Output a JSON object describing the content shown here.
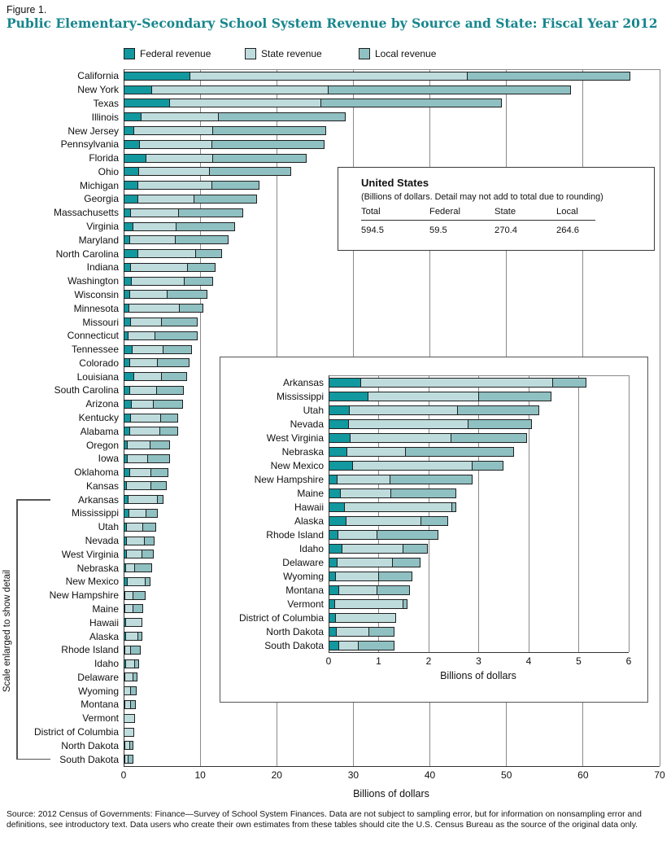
{
  "figure": {
    "label": "Figure 1.",
    "title": "Public Elementary-Secondary School System Revenue by Source and State: Fiscal Year 2012"
  },
  "legend": [
    {
      "label": "Federal revenue",
      "color": "#12989f"
    },
    {
      "label": "State revenue",
      "color": "#bfdcdd"
    },
    {
      "label": "Local revenue",
      "color": "#8fc0c2"
    }
  ],
  "us_box": {
    "title": "United States",
    "subtitle": "(Billions of dollars. Detail may not add to total due to rounding)",
    "columns": [
      "Total",
      "Federal",
      "State",
      "Local"
    ],
    "values": [
      "594.5",
      "59.5",
      "270.4",
      "264.6"
    ]
  },
  "scale_note": "Scale enlarged to show detail",
  "source": "Source: 2012 Census of Governments: Finance—Survey of School System Finances. Data are not subject to sampling error, but for information on nonsampling error and definitions, see introductory text. Data users who create their own estimates from these tables should cite the U.S. Census Bureau as the source of the original data only.",
  "chart_data": [
    {
      "id": "main",
      "type": "bar",
      "orientation": "horizontal",
      "stacked": true,
      "xlabel": "Billions of dollars",
      "xlim": [
        0,
        70
      ],
      "xticks": [
        0,
        10,
        20,
        30,
        40,
        50,
        60,
        70
      ],
      "grid": true,
      "legend_position": "top",
      "series_names": [
        "Federal revenue",
        "State revenue",
        "Local revenue"
      ],
      "units": "billions of dollars",
      "states": [
        {
          "name": "California",
          "federal": 8.7,
          "state": 36.2,
          "local": 21.3
        },
        {
          "name": "New York",
          "federal": 3.7,
          "state": 23.1,
          "local": 31.6
        },
        {
          "name": "Texas",
          "federal": 6.1,
          "state": 19.7,
          "local": 23.6
        },
        {
          "name": "Illinois",
          "federal": 2.3,
          "state": 10.1,
          "local": 16.6
        },
        {
          "name": "New Jersey",
          "federal": 1.4,
          "state": 10.3,
          "local": 14.8
        },
        {
          "name": "Pennsylvania",
          "federal": 2.1,
          "state": 9.5,
          "local": 14.6
        },
        {
          "name": "Florida",
          "federal": 3.0,
          "state": 8.7,
          "local": 12.2
        },
        {
          "name": "Ohio",
          "federal": 2.0,
          "state": 9.3,
          "local": 10.6
        },
        {
          "name": "Michigan",
          "federal": 1.9,
          "state": 9.7,
          "local": 6.1
        },
        {
          "name": "Georgia",
          "federal": 1.9,
          "state": 7.3,
          "local": 8.2
        },
        {
          "name": "Massachusetts",
          "federal": 1.0,
          "state": 6.2,
          "local": 8.4
        },
        {
          "name": "Virginia",
          "federal": 1.3,
          "state": 5.6,
          "local": 7.7
        },
        {
          "name": "Maryland",
          "federal": 0.9,
          "state": 5.9,
          "local": 6.9
        },
        {
          "name": "North Carolina",
          "federal": 1.9,
          "state": 7.6,
          "local": 3.3
        },
        {
          "name": "Indiana",
          "federal": 1.0,
          "state": 7.4,
          "local": 3.6
        },
        {
          "name": "Washington",
          "federal": 1.1,
          "state": 6.9,
          "local": 3.7
        },
        {
          "name": "Wisconsin",
          "federal": 0.8,
          "state": 4.9,
          "local": 5.2
        },
        {
          "name": "Minnesota",
          "federal": 0.7,
          "state": 6.6,
          "local": 3.1
        },
        {
          "name": "Missouri",
          "federal": 1.0,
          "state": 4.0,
          "local": 4.7
        },
        {
          "name": "Connecticut",
          "federal": 0.6,
          "state": 3.5,
          "local": 5.6
        },
        {
          "name": "Tennessee",
          "federal": 1.2,
          "state": 4.0,
          "local": 3.7
        },
        {
          "name": "Colorado",
          "federal": 0.8,
          "state": 3.7,
          "local": 4.1
        },
        {
          "name": "Louisiana",
          "federal": 1.4,
          "state": 3.6,
          "local": 3.3
        },
        {
          "name": "South Carolina",
          "federal": 0.9,
          "state": 3.5,
          "local": 3.5
        },
        {
          "name": "Arizona",
          "federal": 1.1,
          "state": 2.8,
          "local": 3.9
        },
        {
          "name": "Kentucky",
          "federal": 1.0,
          "state": 3.9,
          "local": 2.2
        },
        {
          "name": "Alabama",
          "federal": 0.9,
          "state": 3.9,
          "local": 2.3
        },
        {
          "name": "Oregon",
          "federal": 0.5,
          "state": 3.0,
          "local": 2.6
        },
        {
          "name": "Iowa",
          "federal": 0.5,
          "state": 2.7,
          "local": 2.9
        },
        {
          "name": "Oklahoma",
          "federal": 0.8,
          "state": 2.8,
          "local": 2.2
        },
        {
          "name": "Kansas",
          "federal": 0.4,
          "state": 3.2,
          "local": 2.0
        },
        {
          "name": "Arkansas",
          "federal": 0.65,
          "state": 3.84,
          "local": 0.67
        },
        {
          "name": "Mississippi",
          "federal": 0.79,
          "state": 2.21,
          "local": 1.46
        },
        {
          "name": "Utah",
          "federal": 0.43,
          "state": 2.15,
          "local": 1.63
        },
        {
          "name": "Nevada",
          "federal": 0.41,
          "state": 2.39,
          "local": 1.27
        },
        {
          "name": "West Virginia",
          "federal": 0.44,
          "state": 2.01,
          "local": 1.51
        },
        {
          "name": "Nebraska",
          "federal": 0.37,
          "state": 1.17,
          "local": 2.16
        },
        {
          "name": "New Mexico",
          "federal": 0.49,
          "state": 2.38,
          "local": 0.62
        },
        {
          "name": "New Hampshire",
          "federal": 0.18,
          "state": 1.05,
          "local": 1.64
        },
        {
          "name": "Maine",
          "federal": 0.25,
          "state": 1.0,
          "local": 1.31
        },
        {
          "name": "Hawaii",
          "federal": 0.33,
          "state": 2.14,
          "local": 0.08
        },
        {
          "name": "Alaska",
          "federal": 0.36,
          "state": 1.5,
          "local": 0.53
        },
        {
          "name": "Rhode Island",
          "federal": 0.2,
          "state": 0.78,
          "local": 1.22
        },
        {
          "name": "Idaho",
          "federal": 0.27,
          "state": 1.23,
          "local": 0.49
        },
        {
          "name": "Delaware",
          "federal": 0.18,
          "state": 1.1,
          "local": 0.55
        },
        {
          "name": "Wyoming",
          "federal": 0.15,
          "state": 0.85,
          "local": 0.67
        },
        {
          "name": "Montana",
          "federal": 0.21,
          "state": 0.77,
          "local": 0.64
        },
        {
          "name": "Vermont",
          "federal": 0.13,
          "state": 1.37,
          "local": 0.08
        },
        {
          "name": "District of Columbia",
          "federal": 0.15,
          "state": 1.2,
          "local": 0.0
        },
        {
          "name": "North Dakota",
          "federal": 0.17,
          "state": 0.65,
          "local": 0.5
        },
        {
          "name": "South Dakota",
          "federal": 0.21,
          "state": 0.39,
          "local": 0.71
        }
      ]
    },
    {
      "id": "inset",
      "type": "bar",
      "orientation": "horizontal",
      "stacked": true,
      "xlabel": "Billions of dollars",
      "xlim": [
        0,
        6
      ],
      "xticks": [
        0,
        1,
        2,
        3,
        4,
        5,
        6
      ],
      "grid": true,
      "note": "Scale enlarged to show detail",
      "series_names": [
        "Federal revenue",
        "State revenue",
        "Local revenue"
      ],
      "units": "billions of dollars",
      "states": [
        {
          "name": "Arkansas",
          "federal": 0.65,
          "state": 3.84,
          "local": 0.67
        },
        {
          "name": "Mississippi",
          "federal": 0.79,
          "state": 2.21,
          "local": 1.46
        },
        {
          "name": "Utah",
          "federal": 0.43,
          "state": 2.15,
          "local": 1.63
        },
        {
          "name": "Nevada",
          "federal": 0.41,
          "state": 2.39,
          "local": 1.27
        },
        {
          "name": "West Virginia",
          "federal": 0.44,
          "state": 2.01,
          "local": 1.51
        },
        {
          "name": "Nebraska",
          "federal": 0.37,
          "state": 1.17,
          "local": 2.16
        },
        {
          "name": "New Mexico",
          "federal": 0.49,
          "state": 2.38,
          "local": 0.62
        },
        {
          "name": "New Hampshire",
          "federal": 0.18,
          "state": 1.05,
          "local": 1.64
        },
        {
          "name": "Maine",
          "federal": 0.25,
          "state": 1.0,
          "local": 1.31
        },
        {
          "name": "Hawaii",
          "federal": 0.33,
          "state": 2.14,
          "local": 0.08
        },
        {
          "name": "Alaska",
          "federal": 0.36,
          "state": 1.5,
          "local": 0.53
        },
        {
          "name": "Rhode Island",
          "federal": 0.2,
          "state": 0.78,
          "local": 1.22
        },
        {
          "name": "Idaho",
          "federal": 0.27,
          "state": 1.23,
          "local": 0.49
        },
        {
          "name": "Delaware",
          "federal": 0.18,
          "state": 1.1,
          "local": 0.55
        },
        {
          "name": "Wyoming",
          "federal": 0.15,
          "state": 0.85,
          "local": 0.67
        },
        {
          "name": "Montana",
          "federal": 0.21,
          "state": 0.77,
          "local": 0.64
        },
        {
          "name": "Vermont",
          "federal": 0.13,
          "state": 1.37,
          "local": 0.08
        },
        {
          "name": "District of Columbia",
          "federal": 0.15,
          "state": 1.2,
          "local": 0.0
        },
        {
          "name": "North Dakota",
          "federal": 0.17,
          "state": 0.65,
          "local": 0.5
        },
        {
          "name": "South Dakota",
          "federal": 0.21,
          "state": 0.39,
          "local": 0.71
        }
      ]
    }
  ]
}
